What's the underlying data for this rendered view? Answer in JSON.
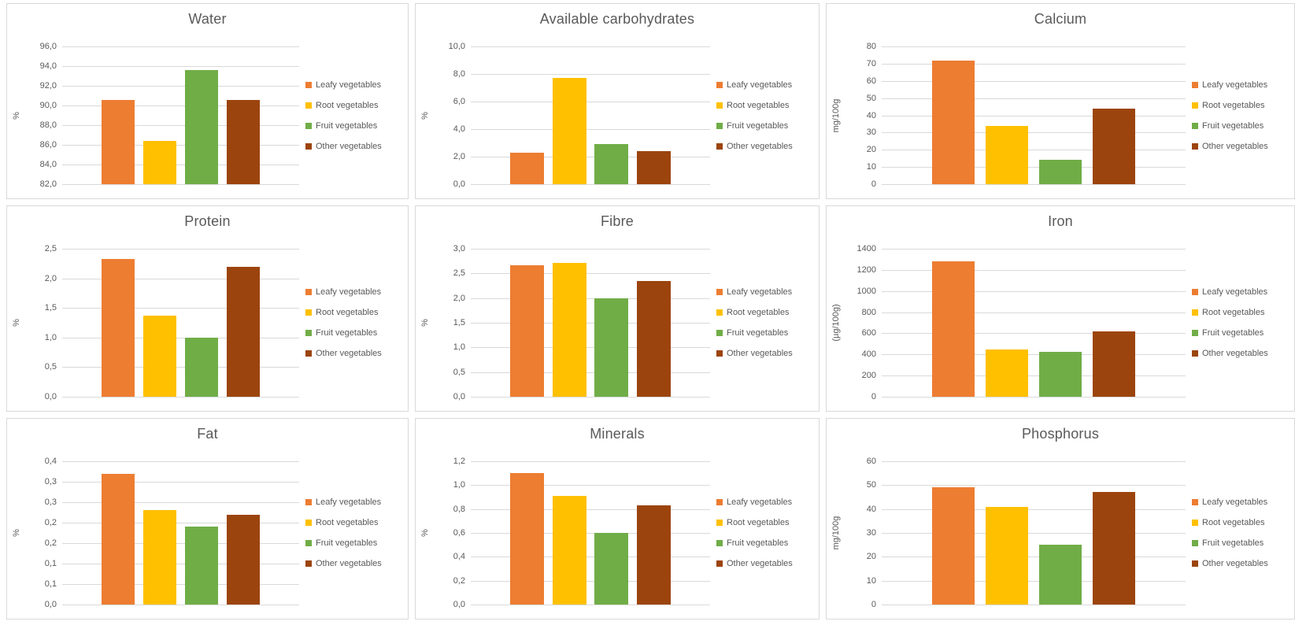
{
  "colors": {
    "background": "#ffffff",
    "panel_border": "#d9d9d9",
    "gridline": "#d9d9d9",
    "title_text": "#595959",
    "axis_text": "#595959",
    "legend_text": "#595959"
  },
  "legend": {
    "position": "right",
    "items": [
      {
        "label": "Leafy vegetables",
        "color": "#ED7D31"
      },
      {
        "label": "Root vegetables",
        "color": "#FFC000"
      },
      {
        "label": "Fruit vegetables",
        "color": "#70AD47"
      },
      {
        "label": "Other vegetables",
        "color": "#9C440D"
      }
    ]
  },
  "chart_data": [
    {
      "type": "bar",
      "title": "Water",
      "ylabel": "%",
      "categories": [
        "Leafy vegetables",
        "Root vegetables",
        "Fruit vegetables",
        "Other vegetables"
      ],
      "values": [
        90.6,
        86.4,
        93.6,
        90.6
      ],
      "ylim": [
        82,
        96
      ],
      "ystep": 2,
      "grid": true,
      "tick_labels": [
        "96,0",
        "94,0",
        "92,0",
        "90,0",
        "88,0",
        "86,0",
        "84,0",
        "82,0"
      ]
    },
    {
      "type": "bar",
      "title": "Available carbohydrates",
      "ylabel": "%",
      "categories": [
        "Leafy vegetables",
        "Root vegetables",
        "Fruit vegetables",
        "Other vegetables"
      ],
      "values": [
        2.3,
        7.7,
        2.9,
        2.4
      ],
      "ylim": [
        0,
        10
      ],
      "ystep": 2,
      "grid": true,
      "tick_labels": [
        "10,0",
        "8,0",
        "6,0",
        "4,0",
        "2,0",
        "0,0"
      ]
    },
    {
      "type": "bar",
      "title": "Calcium",
      "ylabel": "mg/100g",
      "categories": [
        "Leafy vegetables",
        "Root vegetables",
        "Fruit vegetables",
        "Other vegetables"
      ],
      "values": [
        72,
        34,
        14,
        44
      ],
      "ylim": [
        0,
        80
      ],
      "ystep": 10,
      "grid": true,
      "tick_labels": [
        "80",
        "70",
        "60",
        "50",
        "40",
        "30",
        "20",
        "10",
        "0"
      ]
    },
    {
      "type": "bar",
      "title": "Protein",
      "ylabel": "%",
      "categories": [
        "Leafy vegetables",
        "Root vegetables",
        "Fruit vegetables",
        "Other vegetables"
      ],
      "values": [
        2.33,
        1.37,
        1.0,
        2.2
      ],
      "ylim": [
        0,
        2.5
      ],
      "ystep": 0.5,
      "grid": true,
      "tick_labels": [
        "2,5",
        "2,0",
        "1,5",
        "1,0",
        "0,5",
        "0,0"
      ]
    },
    {
      "type": "bar",
      "title": "Fibre",
      "ylabel": "%",
      "categories": [
        "Leafy vegetables",
        "Root vegetables",
        "Fruit vegetables",
        "Other vegetables"
      ],
      "values": [
        2.67,
        2.72,
        2.0,
        2.35
      ],
      "ylim": [
        0,
        3
      ],
      "ystep": 0.5,
      "grid": true,
      "tick_labels": [
        "3,0",
        "2,5",
        "2,0",
        "1,5",
        "1,0",
        "0,5",
        "0,0"
      ]
    },
    {
      "type": "bar",
      "title": "Iron",
      "ylabel": "(µg/100g)",
      "categories": [
        "Leafy vegetables",
        "Root vegetables",
        "Fruit vegetables",
        "Other vegetables"
      ],
      "values": [
        1280,
        450,
        425,
        620
      ],
      "ylim": [
        0,
        1400
      ],
      "ystep": 200,
      "grid": true,
      "tick_labels": [
        "1400",
        "1200",
        "1000",
        "800",
        "600",
        "400",
        "200",
        "0"
      ]
    },
    {
      "type": "bar",
      "title": "Fat",
      "ylabel": "%",
      "categories": [
        "Leafy vegetables",
        "Root vegetables",
        "Fruit vegetables",
        "Other vegetables"
      ],
      "values": [
        0.32,
        0.23,
        0.19,
        0.22
      ],
      "ylim": [
        0,
        0.35
      ],
      "ystep": 0.05,
      "grid": true,
      "tick_labels": [
        "0,4",
        "0,3",
        "0,3",
        "0,2",
        "0,2",
        "0,1",
        "0,1",
        "0,0"
      ]
    },
    {
      "type": "bar",
      "title": "Minerals",
      "ylabel": "%",
      "categories": [
        "Leafy vegetables",
        "Root vegetables",
        "Fruit vegetables",
        "Other vegetables"
      ],
      "values": [
        1.1,
        0.91,
        0.6,
        0.83
      ],
      "ylim": [
        0,
        1.2
      ],
      "ystep": 0.2,
      "grid": true,
      "tick_labels": [
        "1,2",
        "1,0",
        "0,8",
        "0,6",
        "0,4",
        "0,2",
        "0,0"
      ]
    },
    {
      "type": "bar",
      "title": "Phosphorus",
      "ylabel": "mg/100g",
      "categories": [
        "Leafy vegetables",
        "Root vegetables",
        "Fruit vegetables",
        "Other vegetables"
      ],
      "values": [
        49,
        41,
        25,
        47
      ],
      "ylim": [
        0,
        60
      ],
      "ystep": 10,
      "grid": true,
      "tick_labels": [
        "60",
        "50",
        "40",
        "30",
        "20",
        "10",
        "0"
      ]
    }
  ]
}
